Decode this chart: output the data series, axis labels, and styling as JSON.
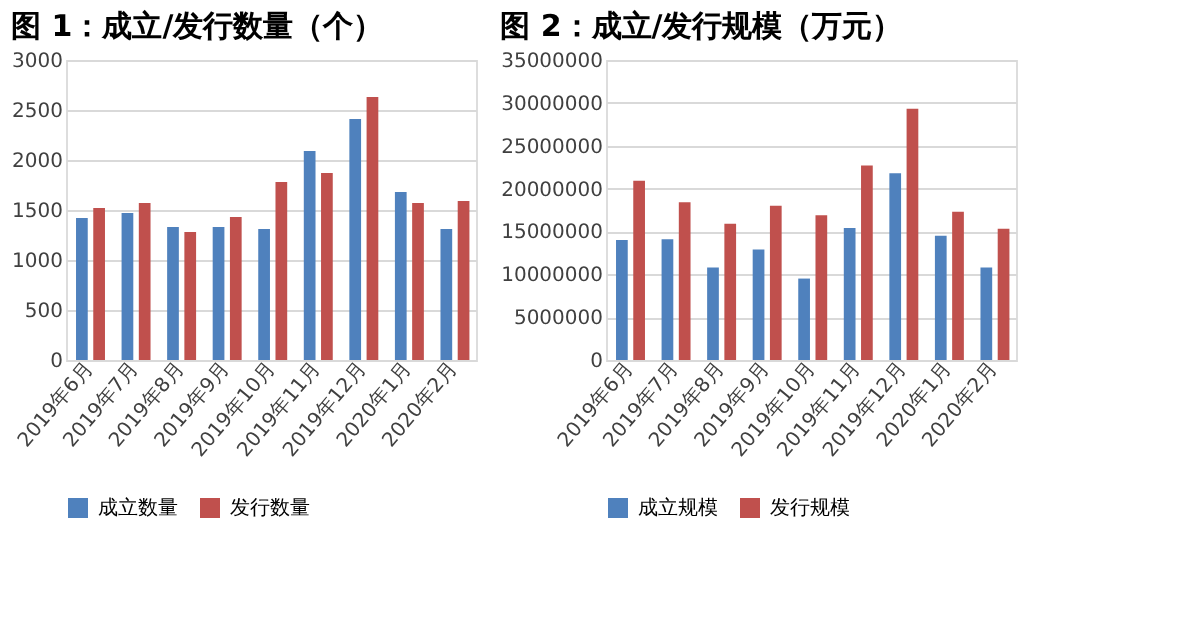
{
  "chart_data": [
    {
      "type": "bar",
      "title": "图 1：成立/发行数量（个）",
      "categories": [
        "2019年6月",
        "2019年7月",
        "2019年8月",
        "2019年9月",
        "2019年10月",
        "2019年11月",
        "2019年12月",
        "2020年1月",
        "2020年2月"
      ],
      "series": [
        {
          "name": "成立数量",
          "color": "#4f81bd",
          "values": [
            1420,
            1470,
            1330,
            1330,
            1310,
            2090,
            2410,
            1680,
            1310
          ]
        },
        {
          "name": "发行数量",
          "color": "#c0504d",
          "values": [
            1520,
            1570,
            1280,
            1430,
            1780,
            1870,
            2630,
            1570,
            1590
          ]
        }
      ],
      "ylim": [
        0,
        3000
      ],
      "yticks": [
        0,
        500,
        1000,
        1500,
        2000,
        2500,
        3000
      ],
      "grid": "y",
      "legend": "bottom"
    },
    {
      "type": "bar",
      "title": "图 2：成立/发行规模（万元）",
      "categories": [
        "2019年6月",
        "2019年7月",
        "2019年8月",
        "2019年9月",
        "2019年10月",
        "2019年11月",
        "2019年12月",
        "2020年1月",
        "2020年2月"
      ],
      "series": [
        {
          "name": "成立规模",
          "color": "#4f81bd",
          "values": [
            14000000,
            14100000,
            10800000,
            12900000,
            9500000,
            15400000,
            21800000,
            14500000,
            10800000
          ]
        },
        {
          "name": "发行规模",
          "color": "#c0504d",
          "values": [
            20900000,
            18400000,
            15900000,
            18000000,
            16900000,
            22700000,
            29300000,
            17300000,
            15300000
          ]
        }
      ],
      "ylim": [
        0,
        35000000
      ],
      "yticks": [
        0,
        5000000,
        10000000,
        15000000,
        20000000,
        25000000,
        30000000,
        35000000
      ],
      "grid": "y",
      "legend": "bottom"
    }
  ]
}
